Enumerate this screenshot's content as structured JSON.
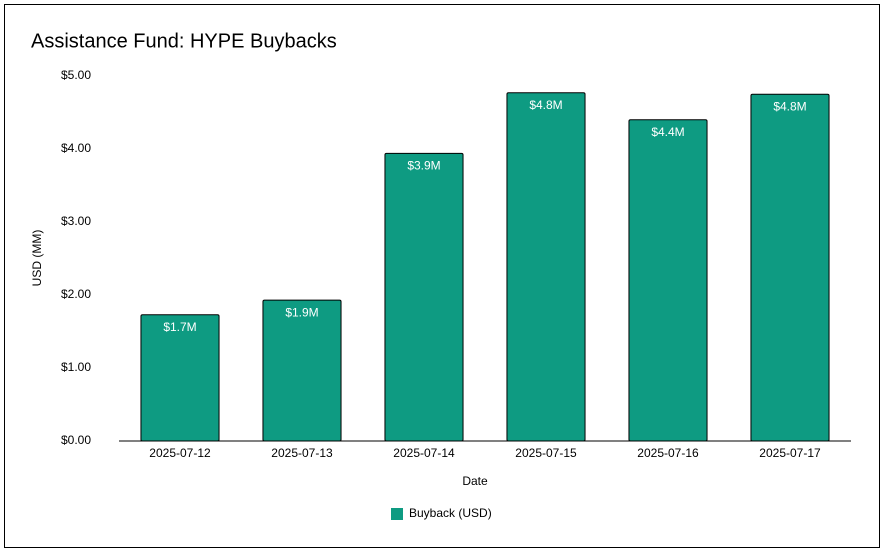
{
  "chart_data": {
    "type": "bar",
    "title": "Assistance Fund: HYPE Buybacks",
    "x_label": "Date",
    "y_label": "USD (MM)",
    "categories": [
      "2025-07-12",
      "2025-07-13",
      "2025-07-14",
      "2025-07-15",
      "2025-07-16",
      "2025-07-17"
    ],
    "series": [
      {
        "name": "Buyback (USD)",
        "color": "#0e9b82",
        "values": [
          1.73,
          1.93,
          3.94,
          4.77,
          4.4,
          4.75
        ],
        "value_labels": [
          "$1.7M",
          "$1.9M",
          "$3.9M",
          "$4.8M",
          "$4.4M",
          "$4.8M"
        ]
      }
    ],
    "ylim": [
      0,
      5
    ],
    "yticks": [
      {
        "value": 0,
        "label": "$0.00"
      },
      {
        "value": 1,
        "label": "$1.00"
      },
      {
        "value": 2,
        "label": "$2.00"
      },
      {
        "value": 3,
        "label": "$3.00"
      },
      {
        "value": 4,
        "label": "$4.00"
      },
      {
        "value": 5,
        "label": "$5.00"
      }
    ],
    "grid": false,
    "legend": "bottom"
  }
}
